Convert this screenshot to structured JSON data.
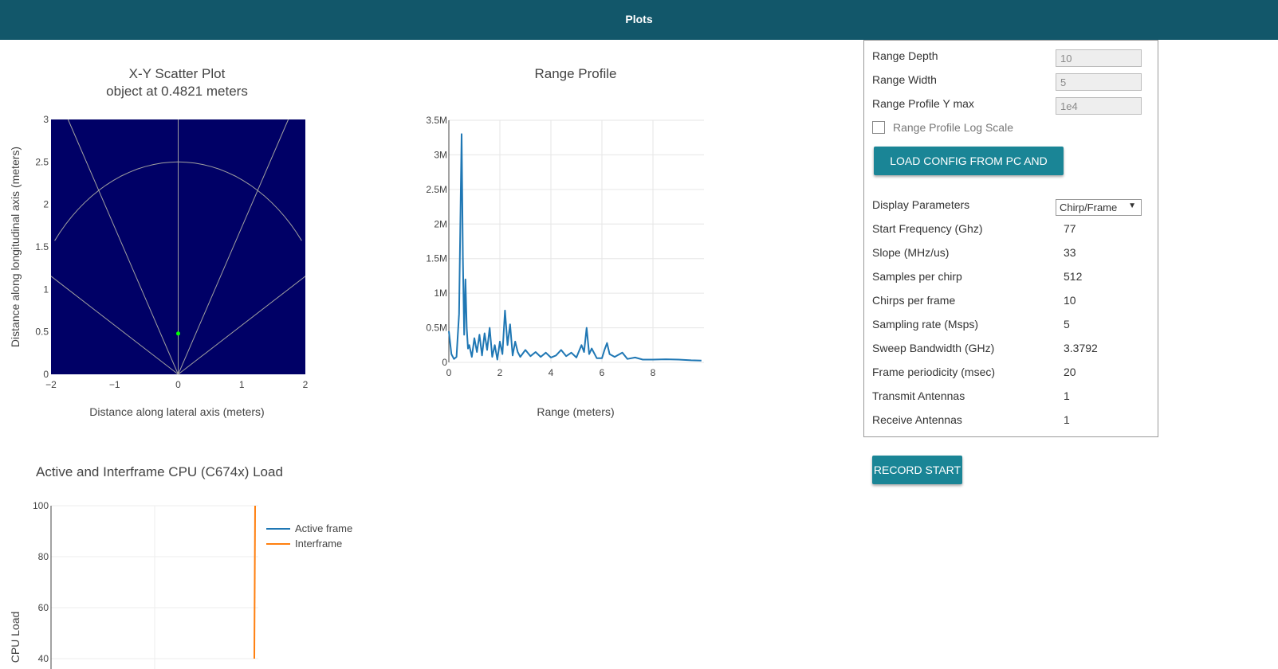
{
  "header": {
    "title": "Plots"
  },
  "scatter": {
    "title": "X-Y Scatter Plot",
    "subtitle": "object at 0.4821 meters",
    "xlabel": "Distance along lateral axis (meters)",
    "ylabel": "Distance along longitudinal axis (meters)",
    "xticks": [
      "−2",
      "−1",
      "0",
      "1",
      "2"
    ],
    "yticks": [
      "0",
      "0.5",
      "1",
      "1.5",
      "2",
      "2.5",
      "3"
    ],
    "bg_color": "#000066"
  },
  "range_profile": {
    "title": "Range Profile",
    "xlabel": "Range (meters)",
    "xticks": [
      "0",
      "2",
      "4",
      "6",
      "8"
    ],
    "yticks": [
      "0",
      "0.5M",
      "1M",
      "1.5M",
      "2M",
      "2.5M",
      "3M",
      "3.5M"
    ]
  },
  "cpu": {
    "title": "Active and Interframe  CPU (C674x) Load",
    "ylabel": "CPU Load",
    "yticks": [
      "40",
      "60",
      "80",
      "100"
    ],
    "legend": [
      "Active frame",
      "Interframe"
    ]
  },
  "settings": {
    "range_depth_label": "Range Depth",
    "range_depth_value": "10",
    "range_width_label": "Range Width",
    "range_width_value": "5",
    "range_ymax_label": "Range Profile Y max",
    "range_ymax_value": "1e4",
    "log_scale_label": "Range Profile Log Scale",
    "load_button": "LOAD CONFIG FROM PC AND SEND",
    "display_params_label": "Display Parameters",
    "display_params_value": "Chirp/Frame",
    "params": [
      {
        "label": "Start Frequency (Ghz)",
        "value": "77"
      },
      {
        "label": "Slope (MHz/us)",
        "value": "33"
      },
      {
        "label": "Samples per chirp",
        "value": "512"
      },
      {
        "label": "Chirps per frame",
        "value": "10"
      },
      {
        "label": "Sampling rate (Msps)",
        "value": "5"
      },
      {
        "label": "Sweep Bandwidth (GHz)",
        "value": "3.3792"
      },
      {
        "label": "Frame periodicity (msec)",
        "value": "20"
      },
      {
        "label": "Transmit Antennas",
        "value": "1"
      },
      {
        "label": "Receive Antennas",
        "value": "1"
      }
    ]
  },
  "record_button": "RECORD START",
  "chart_data": [
    {
      "type": "scatter",
      "title": "X-Y Scatter Plot",
      "subtitle": "object at 0.4821 meters",
      "xlabel": "Distance along lateral axis (meters)",
      "ylabel": "Distance along longitudinal axis (meters)",
      "xlim": [
        -2,
        2
      ],
      "ylim": [
        0,
        3
      ],
      "points": [
        {
          "x": 0,
          "y": 0.48
        }
      ],
      "point_color": "#00ff00",
      "grid": false
    },
    {
      "type": "line",
      "title": "Range Profile",
      "xlabel": "Range (meters)",
      "xlim": [
        0,
        10
      ],
      "ylim": [
        0,
        3500000
      ],
      "x": [
        0,
        0.1,
        0.2,
        0.3,
        0.4,
        0.45,
        0.5,
        0.55,
        0.6,
        0.65,
        0.7,
        0.75,
        0.8,
        0.9,
        1.0,
        1.1,
        1.2,
        1.3,
        1.4,
        1.5,
        1.6,
        1.7,
        1.8,
        1.9,
        2.0,
        2.1,
        2.2,
        2.3,
        2.4,
        2.5,
        2.6,
        2.7,
        2.8,
        3.0,
        3.2,
        3.4,
        3.6,
        3.8,
        4.0,
        4.2,
        4.4,
        4.6,
        4.8,
        5.0,
        5.2,
        5.3,
        5.4,
        5.5,
        5.6,
        5.8,
        6.0,
        6.1,
        6.2,
        6.3,
        6.5,
        6.8,
        7.0,
        7.3,
        7.6,
        8.0,
        8.5,
        9.0,
        9.5,
        9.9
      ],
      "values": [
        450000,
        120000,
        50000,
        80000,
        700000,
        2000000,
        3300000,
        1500000,
        400000,
        1200000,
        500000,
        200000,
        250000,
        80000,
        350000,
        150000,
        400000,
        100000,
        420000,
        180000,
        500000,
        80000,
        250000,
        40000,
        300000,
        120000,
        750000,
        250000,
        550000,
        100000,
        300000,
        150000,
        80000,
        180000,
        90000,
        150000,
        80000,
        140000,
        70000,
        100000,
        180000,
        90000,
        140000,
        70000,
        250000,
        150000,
        500000,
        120000,
        200000,
        60000,
        60000,
        180000,
        280000,
        120000,
        80000,
        140000,
        50000,
        70000,
        40000,
        40000,
        45000,
        40000,
        30000,
        25000
      ],
      "color": "#1f77b4",
      "grid": true
    },
    {
      "type": "line",
      "title": "Active and Interframe  CPU (C674x) Load",
      "ylabel": "CPU Load",
      "ylim": [
        40,
        100
      ],
      "series": [
        {
          "name": "Active frame",
          "color": "#1f77b4",
          "values": []
        },
        {
          "name": "Interframe",
          "color": "#ff7f0e",
          "values": [
            100,
            40
          ]
        }
      ],
      "legend": "top-right",
      "grid": true
    }
  ]
}
